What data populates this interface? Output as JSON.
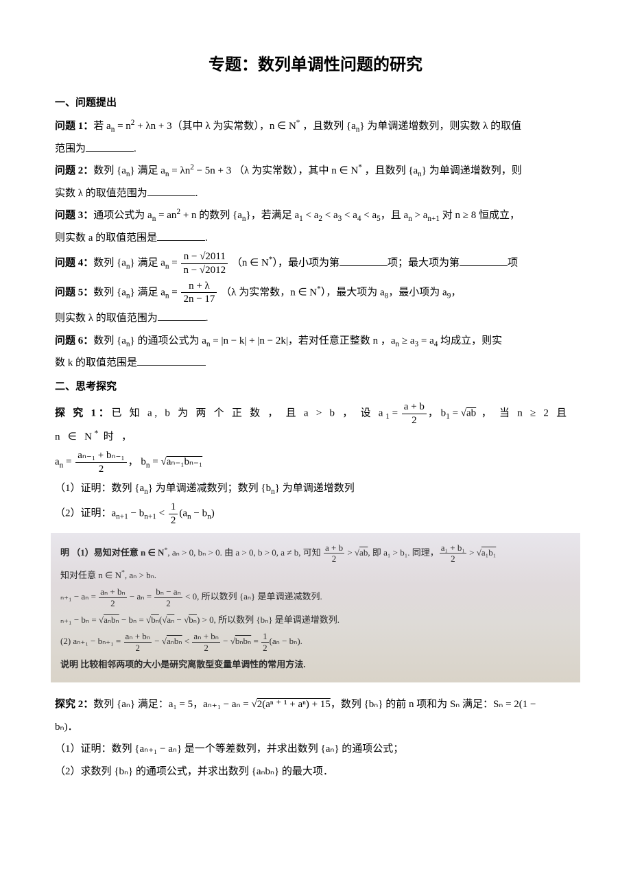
{
  "title": "专题：数列单调性问题的研究",
  "sections": {
    "s1": "一、问题提出",
    "s2": "二、思考探究"
  },
  "q": {
    "q1_label": "问题 1：",
    "q1a": "若 a",
    "q1b": " = n",
    "q1c": " + λn + 3（其中 λ 为实常数），n ∈ N",
    "q1d": " ，且数列 {a",
    "q1e": "} 为单调递增数列，则实数 λ 的取值",
    "q1f": "范围为",
    "q1g": ".",
    "q2_label": "问题 2：",
    "q2a": "数列 {a",
    "q2b": "} 满足 a",
    "q2c": " = λn",
    "q2d": " − 5n + 3 （λ 为实常数），其中 n ∈ N",
    "q2e": " ，且数列 {a",
    "q2f": "} 为单调递增数列，则",
    "q2g": "实数 λ 的取值范围为",
    "q2h": ".",
    "q3_label": "问题 3：",
    "q3a": "通项公式为 a",
    "q3b": " = an",
    "q3c": " + n 的数列 {a",
    "q3d": "}，若满足 a",
    "q3e": " < a",
    "q3f": " < a",
    "q3g": " < a",
    "q3h": " < a",
    "q3i": "，且 a",
    "q3j": " > a",
    "q3k": " 对 n ≥ 8 恒成立，",
    "q3l": "则实数 a 的取值范围是",
    "q3m": ".",
    "q4_label": "问题 4：",
    "q4a": "数列 {a",
    "q4b": "} 满足 a",
    "q4c": " = ",
    "q4num": "n − √2011",
    "q4den": "n − √2012",
    "q4d": " （n ∈ N",
    "q4e": "），最小项为第",
    "q4f": "项；最大项为第",
    "q4g": "项",
    "q5_label": "问题 5：",
    "q5a": "数列 {a",
    "q5b": "} 满足 a",
    "q5c": " = ",
    "q5num": "n + λ",
    "q5den": "2n − 17",
    "q5d": " （λ 为实常数，n ∈ N",
    "q5e": "），最大项为 a",
    "q5f": "，最小项为 a",
    "q5g": "，",
    "q5h": "则实数 λ 的取值范围为",
    "q5i": ".",
    "q6_label": "问题 6：",
    "q6a": "数列 {a",
    "q6b": "} 的通项公式为 a",
    "q6c": " = |n − k| + |n − 2k|，若对任意正整数 n ，a",
    "q6d": " ≥ a",
    "q6e": " = a",
    "q6f": " 均成立，则实",
    "q6g": "数 k 的取值范围是"
  },
  "ex1": {
    "label": "探 究 1：",
    "a": "已 知 a, b 为 两 个 正 数 ， 且 a > b ， 设 a",
    "b": " = ",
    "f1num": "a + b",
    "f1den": "2",
    "c": "， b",
    "d": " = √",
    "e": " ， 当 n ≥ 2 且 n ∈ N",
    "f": " 时 ，",
    "g1": "a",
    "g2": " = ",
    "f2num": "aₙ₋₁ + bₙ₋₁",
    "f2den": "2",
    "g3": "， b",
    "g4": " = √",
    "p1": "（1）证明：数列 {a",
    "p1b": "} 为单调递减数列；数列 {b",
    "p1c": "} 为单调递增数列",
    "p2": "（2）证明：a",
    "p2b": " − b",
    "p2c": " < ",
    "f3num": "1",
    "f3den": "2",
    "p2d": "(a",
    "p2e": " − b",
    "p2f": ")"
  },
  "img": {
    "l1a": "明 （1）易知对任意 n ∈ N",
    "l1b": ", aₙ > 0, bₙ > 0. 由 a > 0, b > 0, a ≠ b, 可知 ",
    "l1num": "a + b",
    "l1den": "2",
    "l1c": " > √",
    "l1d": ", 即 a₁ > b₁. 同理，",
    "l1e_num": "a₁ + b₁",
    "l1e_den": "2",
    "l1f": " > √",
    "l2": "知对任意 n ∈ N",
    "l2b": ", aₙ > bₙ.",
    "l3a": "ₙ₊₁ − aₙ = ",
    "l3num1": "aₙ + bₙ",
    "l3den1": "2",
    "l3b": " − aₙ = ",
    "l3num2": "bₙ − aₙ",
    "l3den2": "2",
    "l3c": " < 0, 所以数列 {aₙ} 是单调递减数列.",
    "l4a": "ₙ₊₁ − bₙ = √",
    "l4b": " − bₙ = √",
    "l4c": "(√",
    "l4d": " − √",
    "l4e": ") > 0, 所以数列 {bₙ} 是单调递增数列.",
    "l5a": "(2) aₙ₊₁ − bₙ₊₁ = ",
    "l5num1": "aₙ + bₙ",
    "l5den1": "2",
    "l5b": " − √",
    "l5c": " < ",
    "l5num2": "aₙ + bₙ",
    "l5den2": "2",
    "l5d": " − √",
    "l5e": " = ",
    "l5num3": "1",
    "l5den3": "2",
    "l5f": "(aₙ − bₙ).",
    "l6": "说明  比较相邻两项的大小是研究离散型变量单调性的常用方法."
  },
  "ex2": {
    "label": "探究 2：",
    "a": "数列 {aₙ} 满足：a₁ = 5，aₙ₊₁ − aₙ = √",
    "b": "，数列 {bₙ} 的前 n 项和为 Sₙ 满足：Sₙ = 2(1 −",
    "c": "bₙ)．",
    "p1": "（1）证明：数列 {aₙ₊₁ − aₙ} 是一个等差数列，并求出数列 {aₙ} 的通项公式；",
    "p2": "（2）求数列 {bₙ} 的通项公式，并求出数列 {aₙbₙ} 的最大项．"
  },
  "subs": {
    "n": "n",
    "star": "*",
    "one": "1",
    "two": "2",
    "three": "3",
    "four": "4",
    "five": "5",
    "eight": "8",
    "nine": "9",
    "np1": "n+1",
    "sq": "2",
    "ab": "ab",
    "anbn": "aₙbₙ",
    "bnbn": "bₙbₙ",
    "a1b1": "a₁b₁",
    "an1bn1": "aₙ₋₁bₙ₋₁",
    "an": "aₙ",
    "bn": "bₙ",
    "rad": "2(aⁿ ⁺ ¹ + aⁿ) + 15"
  }
}
